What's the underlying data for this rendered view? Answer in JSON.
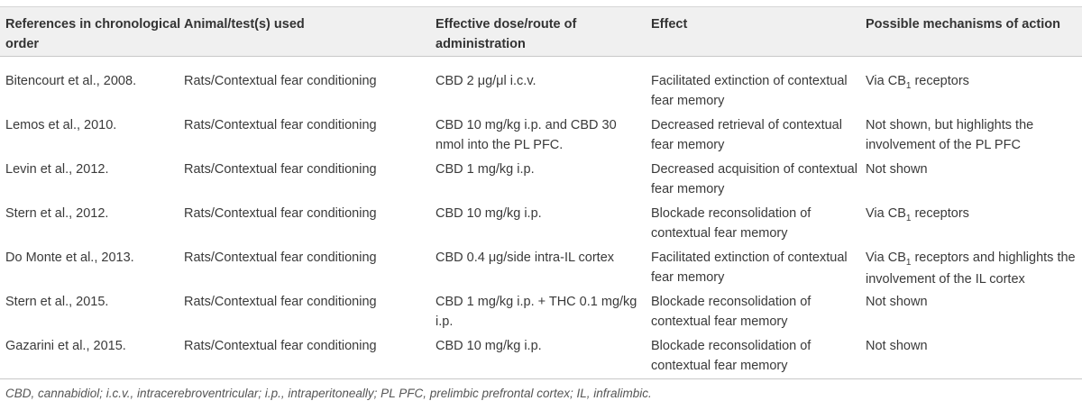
{
  "header": {
    "col1": "References in chronological order",
    "col2": "Animal/test(s) used",
    "col3": "Effective dose/route of administration",
    "col4": "Effect",
    "col5": "Possible mechanisms of action"
  },
  "rows": [
    {
      "ref": "Bitencourt et al., 2008.",
      "animal": "Rats/Contextual fear conditioning",
      "dose": "CBD 2 μg/μl i.c.v.",
      "effect": "Facilitated extinction of contextual fear memory",
      "mech_pre": "Via CB",
      "mech_sub": "1",
      "mech_post": " receptors"
    },
    {
      "ref": "Lemos et al., 2010.",
      "animal": "Rats/Contextual fear conditioning",
      "dose": "CBD 10 mg/kg i.p. and CBD 30 nmol into the PL PFC.",
      "effect": "Decreased retrieval of contextual fear memory",
      "mech_pre": "Not shown, but highlights the involvement of the PL PFC",
      "mech_sub": "",
      "mech_post": ""
    },
    {
      "ref": "Levin et al., 2012.",
      "animal": "Rats/Contextual fear conditioning",
      "dose": "CBD 1 mg/kg i.p.",
      "effect": "Decreased acquisition of contextual fear memory",
      "mech_pre": "Not shown",
      "mech_sub": "",
      "mech_post": ""
    },
    {
      "ref": "Stern et al., 2012.",
      "animal": "Rats/Contextual fear conditioning",
      "dose": "CBD 10 mg/kg i.p.",
      "effect": "Blockade reconsolidation of contextual fear memory",
      "mech_pre": "Via CB",
      "mech_sub": "1",
      "mech_post": " receptors"
    },
    {
      "ref": "Do Monte et al., 2013.",
      "animal": "Rats/Contextual fear conditioning",
      "dose": "CBD 0.4 μg/side intra-IL cortex",
      "effect": "Facilitated extinction of contextual fear memory",
      "mech_pre": "Via CB",
      "mech_sub": "1",
      "mech_post": " receptors and highlights the involvement of the IL cortex"
    },
    {
      "ref": "Stern et al., 2015.",
      "animal": "Rats/Contextual fear conditioning",
      "dose": "CBD 1 mg/kg i.p. + THC 0.1 mg/kg i.p.",
      "effect": "Blockade reconsolidation of contextual fear memory",
      "mech_pre": "Not shown",
      "mech_sub": "",
      "mech_post": ""
    },
    {
      "ref": "Gazarini et al., 2015.",
      "animal": "Rats/Contextual fear conditioning",
      "dose": "CBD 10 mg/kg i.p.",
      "effect": "Blockade reconsolidation of contextual fear memory",
      "mech_pre": "Not shown",
      "mech_sub": "",
      "mech_post": ""
    }
  ],
  "footnote": "CBD, cannabidiol; i.c.v., intracerebroventricular; i.p., intraperitoneally; PL PFC, prelimbic prefrontal cortex; IL, infralimbic."
}
